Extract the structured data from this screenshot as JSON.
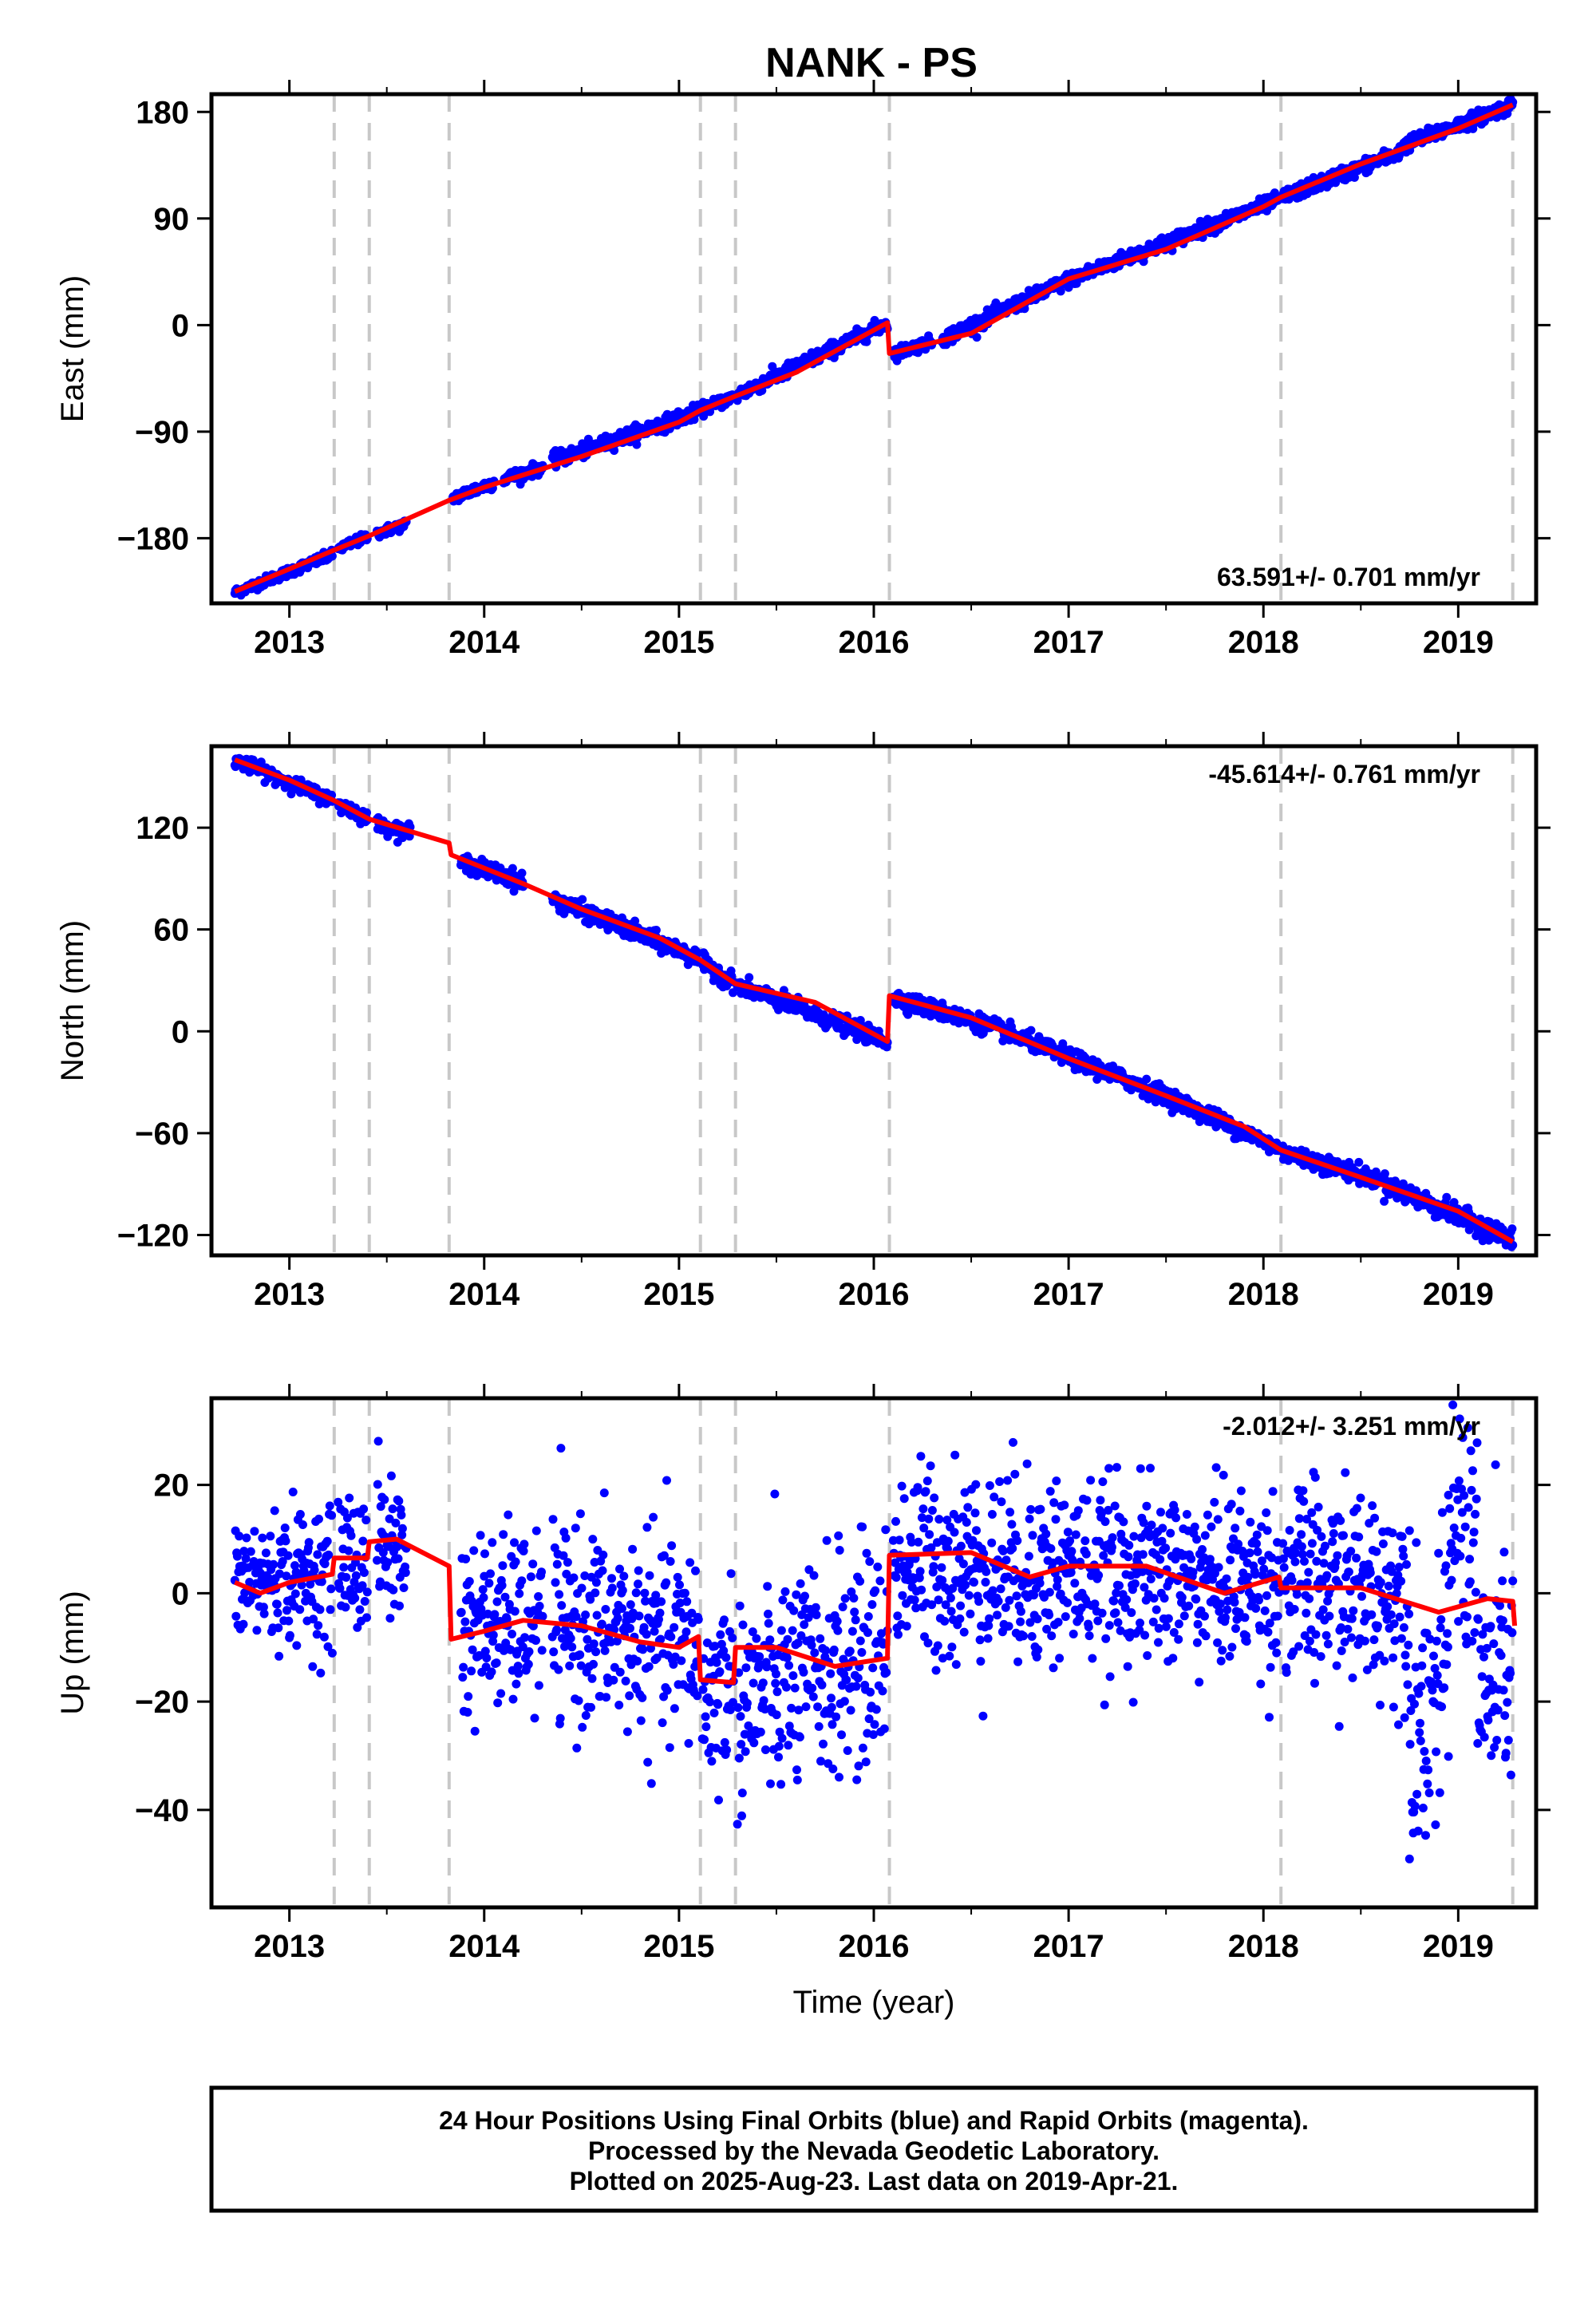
{
  "title": "NANK - PS",
  "footer": {
    "line1": "24 Hour Positions Using Final Orbits (blue) and Rapid Orbits (magenta).",
    "line2": "Processed by the Nevada Geodetic Laboratory.",
    "line3": "Plotted on 2025-Aug-23. Last data on 2019-Apr-21."
  },
  "colors": {
    "data": "#0000ff",
    "model": "#ff0000",
    "event_line": "#c8c8c8",
    "frame": "#000000"
  },
  "chart_data": [
    {
      "type": "scatter",
      "component": "East",
      "ylabel": "East (mm)",
      "xlabel": "",
      "xlim": [
        2012.6,
        2019.4
      ],
      "ylim": [
        -235,
        195
      ],
      "xticks": [
        2013,
        2014,
        2015,
        2016,
        2017,
        2018,
        2019
      ],
      "yticks": [
        -180,
        -90,
        0,
        90,
        180
      ],
      "rate_label": "63.591+/- 0.701 mm/yr",
      "rate_position": "bottom-right",
      "event_lines": [
        2013.23,
        2013.41,
        2013.82,
        2015.11,
        2015.29,
        2016.08,
        2018.09,
        2019.28
      ],
      "model": [
        [
          2012.72,
          -225
        ],
        [
          2013.0,
          -206
        ],
        [
          2013.23,
          -190
        ],
        [
          2013.41,
          -178
        ],
        [
          2013.82,
          -148
        ],
        [
          2014.0,
          -137
        ],
        [
          2014.5,
          -111
        ],
        [
          2015.0,
          -82
        ],
        [
          2015.11,
          -72
        ],
        [
          2015.29,
          -60
        ],
        [
          2015.6,
          -40
        ],
        [
          2016.07,
          2
        ],
        [
          2016.08,
          -24
        ],
        [
          2016.5,
          -7
        ],
        [
          2017.0,
          39
        ],
        [
          2017.5,
          64
        ],
        [
          2018.0,
          100
        ],
        [
          2018.09,
          108
        ],
        [
          2018.5,
          136
        ],
        [
          2019.0,
          166
        ],
        [
          2019.28,
          186
        ]
      ],
      "series": [
        {
          "name": "Final Orbits",
          "segments": [
            [
              2012.72,
              2013.22,
              -226,
              -194,
              2.0
            ],
            [
              2013.25,
              2013.4,
              -189,
              -179,
              2.0
            ],
            [
              2013.45,
              2013.6,
              -176,
              -168,
              2.0
            ],
            [
              2013.84,
              2014.05,
              -146,
              -133,
              2.5
            ],
            [
              2014.1,
              2014.3,
              -130,
              -120,
              2.5
            ],
            [
              2014.35,
              2015.1,
              -115,
              -73,
              3.0
            ],
            [
              2015.12,
              2015.28,
              -71,
              -61,
              2.5
            ],
            [
              2015.3,
              2016.07,
              -59,
              2,
              3.0
            ],
            [
              2016.1,
              2016.3,
              -24,
              -14,
              2.5
            ],
            [
              2016.35,
              2017.0,
              -12,
              38,
              3.0
            ],
            [
              2017.0,
              2018.08,
              38,
              106,
              3.0
            ],
            [
              2018.1,
              2018.7,
              108,
              146,
              3.0
            ],
            [
              2018.72,
              2019.28,
              152,
              186,
              3.0
            ]
          ]
        }
      ]
    },
    {
      "type": "scatter",
      "component": "North",
      "ylabel": "North (mm)",
      "xlabel": "",
      "xlim": [
        2012.6,
        2019.4
      ],
      "ylim": [
        -132,
        168
      ],
      "xticks": [
        2013,
        2014,
        2015,
        2016,
        2017,
        2018,
        2019
      ],
      "yticks": [
        -120,
        -60,
        0,
        60,
        120
      ],
      "rate_label": "-45.614+/- 0.761 mm/yr",
      "rate_position": "top-right",
      "event_lines": [
        2013.23,
        2013.41,
        2013.82,
        2015.11,
        2015.29,
        2016.08,
        2018.09,
        2019.28
      ],
      "model": [
        [
          2012.72,
          160
        ],
        [
          2013.0,
          148
        ],
        [
          2013.23,
          136
        ],
        [
          2013.41,
          125
        ],
        [
          2013.82,
          111
        ],
        [
          2013.83,
          104
        ],
        [
          2014.2,
          87
        ],
        [
          2014.5,
          72
        ],
        [
          2014.9,
          55
        ],
        [
          2015.11,
          42
        ],
        [
          2015.29,
          28
        ],
        [
          2015.7,
          17
        ],
        [
          2016.07,
          -6
        ],
        [
          2016.08,
          21
        ],
        [
          2016.5,
          8
        ],
        [
          2017.0,
          -16
        ],
        [
          2017.5,
          -38
        ],
        [
          2017.9,
          -56
        ],
        [
          2018.09,
          -70
        ],
        [
          2018.5,
          -86
        ],
        [
          2019.0,
          -106
        ],
        [
          2019.28,
          -124
        ]
      ],
      "series": [
        {
          "name": "Final Orbits",
          "segments": [
            [
              2012.72,
              2013.22,
              160,
              136,
              2.0
            ],
            [
              2013.25,
              2013.4,
              134,
              126,
              2.0
            ],
            [
              2013.45,
              2013.62,
              122,
              117,
              2.0
            ],
            [
              2013.88,
              2014.2,
              100,
              88,
              2.5
            ],
            [
              2014.35,
              2015.1,
              78,
              43,
              2.5
            ],
            [
              2015.12,
              2015.28,
              40,
              29,
              2.5
            ],
            [
              2015.3,
              2016.07,
              27,
              -6,
              2.5
            ],
            [
              2016.1,
              2016.6,
              20,
              3,
              2.5
            ],
            [
              2016.6,
              2017.5,
              3,
              -38,
              2.5
            ],
            [
              2017.5,
              2018.08,
              -38,
              -69,
              2.5
            ],
            [
              2018.1,
              2018.6,
              -71,
              -88,
              2.5
            ],
            [
              2018.62,
              2019.28,
              -90,
              -123,
              3.0
            ]
          ]
        }
      ]
    },
    {
      "type": "scatter",
      "component": "Up",
      "ylabel": "Up (mm)",
      "xlabel": "Time (year)",
      "xlim": [
        2012.6,
        2019.4
      ],
      "ylim": [
        -58,
        36
      ],
      "xticks": [
        2013,
        2014,
        2015,
        2016,
        2017,
        2018,
        2019
      ],
      "yticks": [
        -40,
        -20,
        0,
        20
      ],
      "rate_label": "-2.012+/- 3.251 mm/yr",
      "rate_position": "top-right",
      "event_lines": [
        2013.23,
        2013.41,
        2013.82,
        2015.11,
        2015.29,
        2016.08,
        2018.09,
        2019.28
      ],
      "model": [
        [
          2012.72,
          2
        ],
        [
          2012.85,
          0
        ],
        [
          2013.0,
          2
        ],
        [
          2013.22,
          3.5
        ],
        [
          2013.23,
          6.5
        ],
        [
          2013.4,
          6.5
        ],
        [
          2013.41,
          9.5
        ],
        [
          2013.55,
          10
        ],
        [
          2013.82,
          5
        ],
        [
          2013.83,
          -8.5
        ],
        [
          2014.0,
          -7
        ],
        [
          2014.2,
          -5
        ],
        [
          2014.5,
          -6
        ],
        [
          2014.8,
          -9
        ],
        [
          2015.0,
          -10
        ],
        [
          2015.1,
          -8
        ],
        [
          2015.11,
          -16
        ],
        [
          2015.28,
          -16.5
        ],
        [
          2015.29,
          -10
        ],
        [
          2015.5,
          -10
        ],
        [
          2015.8,
          -13.5
        ],
        [
          2016.07,
          -12
        ],
        [
          2016.08,
          7
        ],
        [
          2016.5,
          7.5
        ],
        [
          2016.8,
          3
        ],
        [
          2017.0,
          5
        ],
        [
          2017.4,
          5
        ],
        [
          2017.8,
          0
        ],
        [
          2018.08,
          3
        ],
        [
          2018.09,
          1
        ],
        [
          2018.5,
          1
        ],
        [
          2018.9,
          -3.5
        ],
        [
          2019.15,
          -1
        ],
        [
          2019.28,
          -1.5
        ],
        [
          2019.29,
          -6
        ]
      ],
      "series": [
        {
          "name": "Final Orbits",
          "segments": [
            [
              2012.72,
              2013.22,
              2,
              3.5,
              6
            ],
            [
              2013.25,
              2013.4,
              6,
              6,
              7
            ],
            [
              2013.45,
              2013.6,
              9,
              8,
              7
            ],
            [
              2013.88,
              2014.3,
              -6,
              -5,
              8
            ],
            [
              2014.35,
              2015.1,
              -5,
              -10,
              9
            ],
            [
              2015.12,
              2015.28,
              -20,
              -15,
              9
            ],
            [
              2015.3,
              2016.07,
              -20,
              -10,
              10
            ],
            [
              2016.1,
              2017.0,
              6,
              4,
              9
            ],
            [
              2017.0,
              2018.08,
              4,
              2,
              8
            ],
            [
              2018.1,
              2018.75,
              2,
              0,
              9
            ],
            [
              2018.75,
              2018.95,
              -25,
              -15,
              12
            ],
            [
              2018.95,
              2019.1,
              15,
              10,
              12
            ],
            [
              2019.1,
              2019.28,
              -20,
              -12,
              12
            ]
          ]
        }
      ]
    }
  ]
}
